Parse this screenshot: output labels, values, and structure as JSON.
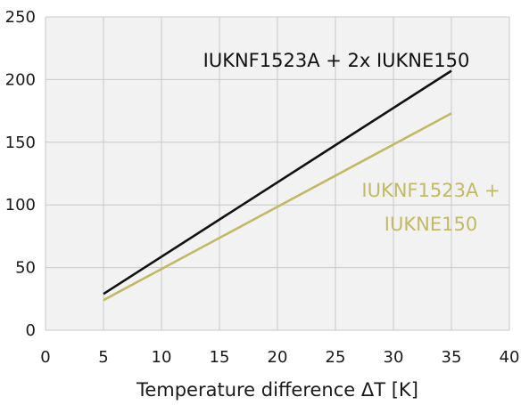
{
  "chart_data": {
    "type": "line",
    "xlabel": "Temperature difference ΔT [K]",
    "ylabel": "",
    "xlim": [
      0,
      40
    ],
    "ylim": [
      0,
      250
    ],
    "xticks": [
      0,
      5,
      10,
      15,
      20,
      25,
      30,
      35,
      40
    ],
    "yticks": [
      0,
      50,
      100,
      150,
      200,
      250
    ],
    "grid": true,
    "plot_background": "#f2f2f2",
    "grid_color": "#c8c8c8",
    "series": [
      {
        "name": "IUKNF1523A + 2x IUKNE150",
        "label_lines": [
          "IUKNF1523A + 2x IUKNE150"
        ],
        "color": "#111111",
        "x": [
          5,
          35
        ],
        "y": [
          29,
          207
        ]
      },
      {
        "name": "IUKNF1523A + IUKNE150",
        "label_lines": [
          "IUKNF1523A +",
          "IUKNE150"
        ],
        "color": "#c2b964",
        "x": [
          5,
          35
        ],
        "y": [
          24,
          173
        ]
      }
    ]
  }
}
